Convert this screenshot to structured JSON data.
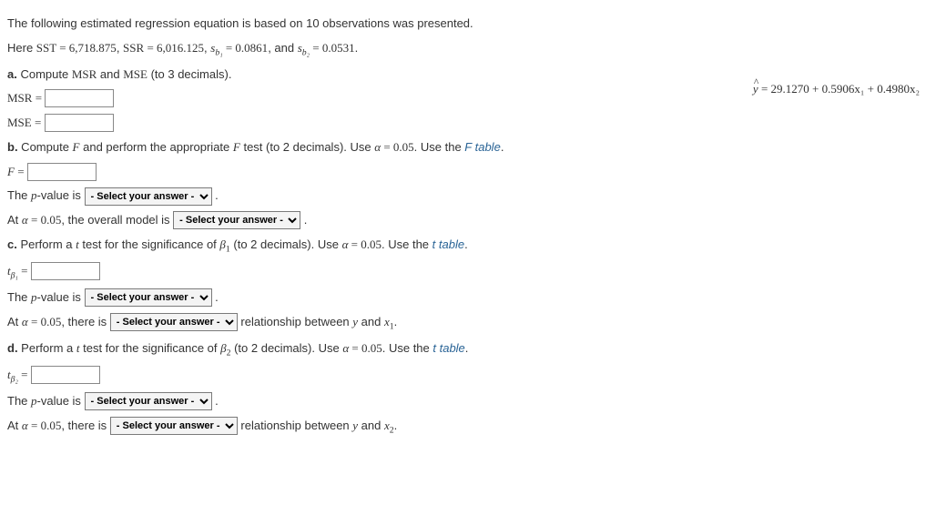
{
  "intro": "The following estimated regression equation is based on 10 observations was presented.",
  "equation": {
    "lhs_hat": "y",
    "rhs": " = 29.1270 + 0.5906x₁ + 0.4980x₂"
  },
  "given": {
    "prefix": "Here ",
    "sst_label": "SST",
    "sst_val": " = 6,718.875",
    "sep1": ", ",
    "ssr_label": "SSR",
    "ssr_val": " = 6,016.125",
    "sep2": ", ",
    "sb1_label": "s",
    "sb1_sub": "b₁",
    "sb1_val": " = 0.0861",
    "mid": ", and ",
    "sb2_label": "s",
    "sb2_sub": "b₂",
    "sb2_val": " = 0.0531",
    "end": "."
  },
  "a": {
    "label": "a.",
    "text": " Compute ",
    "msr": "MSR",
    "and": " and ",
    "mse": "MSE",
    "tail": " (to 3 decimals).",
    "msr_eq": "MSR",
    "mse_eq": "MSE"
  },
  "b": {
    "label": "b.",
    "text1": " Compute ",
    "F": "F",
    "text2": " and perform the appropriate ",
    "F2": "F",
    "text3": " test (to 2 decimals). Use ",
    "alpha": "α",
    "alpha_val": " = 0.05",
    "text4": ". Use the ",
    "link": "F table",
    "text5": ".",
    "Feq": "F",
    "pval_prefix": "The ",
    "p": "p",
    "pval_text": "-value is ",
    "at_prefix": "At ",
    "at_alpha_val": " = 0.05",
    "at_text": ", the overall model is "
  },
  "c": {
    "label": "c.",
    "text1": " Perform a ",
    "t": "t",
    "text2": " test for the significance of ",
    "beta": "β",
    "sub": "1",
    "text3": " (to 2 decimals). Use ",
    "alpha": "α",
    "alpha_val": " = 0.05",
    "text4": ". Use the ",
    "link": "t table",
    "text5": ".",
    "tstat": "t",
    "tstat_sub": "β₁",
    "pval_prefix": "The ",
    "p": "p",
    "pval_text": "-value is ",
    "at_prefix": "At ",
    "at_alpha_val": " = 0.05",
    "at_text": ", there is ",
    "rel_text": " relationship between ",
    "y": "y",
    "and": " and ",
    "x": "x",
    "xsub": "1",
    "end": "."
  },
  "d": {
    "label": "d.",
    "text1": " Perform a ",
    "t": "t",
    "text2": " test for the significance of ",
    "beta": "β",
    "sub": "2",
    "text3": " (to 2 decimals). Use ",
    "alpha": "α",
    "alpha_val": " = 0.05",
    "text4": ". Use the ",
    "link": "t table",
    "text5": ".",
    "tstat": "t",
    "tstat_sub": "β₂",
    "pval_prefix": "The ",
    "p": "p",
    "pval_text": "-value is ",
    "at_prefix": "At ",
    "at_alpha_val": " = 0.05",
    "at_text": ", there is ",
    "rel_text": " relationship between ",
    "y": "y",
    "and": " and ",
    "x": "x",
    "xsub": "2",
    "end": "."
  },
  "select_placeholder": "- Select your answer -",
  "period": " .",
  "equals": " = "
}
